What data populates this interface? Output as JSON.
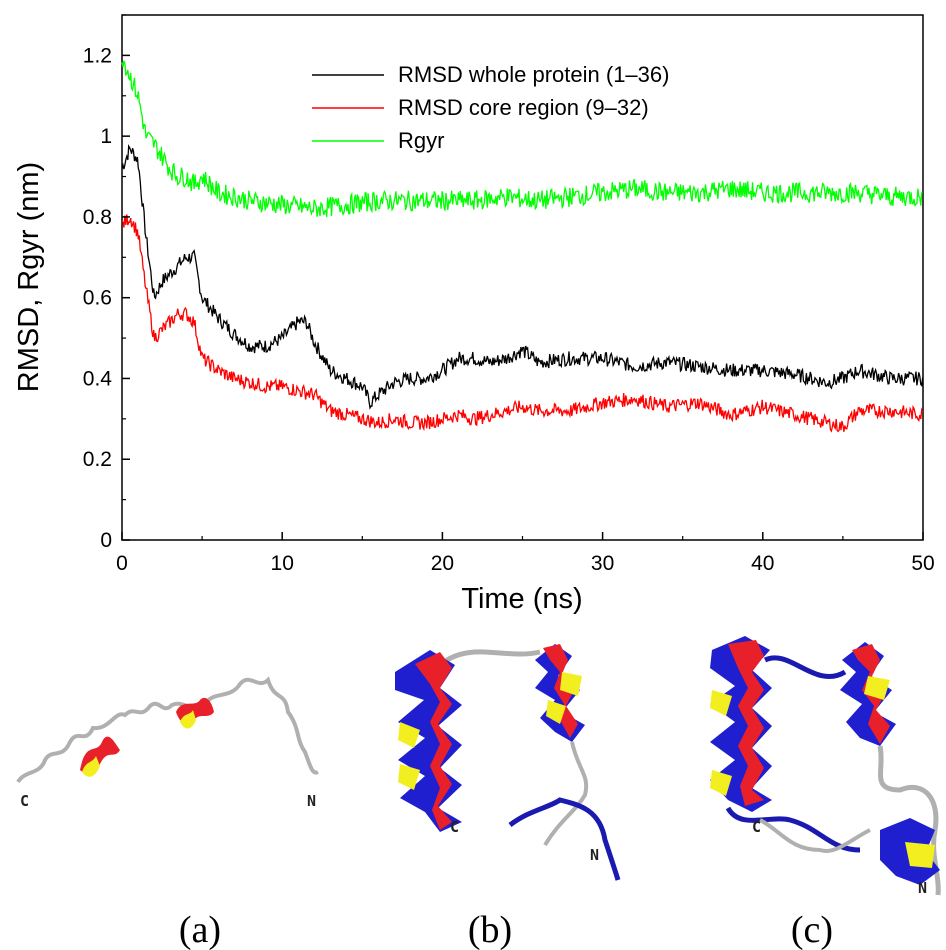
{
  "chart_data": {
    "type": "line",
    "xlabel": "Time (ns)",
    "ylabel": "RMSD, Rgyr (nm)",
    "xlim": [
      0,
      50
    ],
    "ylim": [
      0,
      1.3
    ],
    "xticks": [
      "0",
      "10",
      "20",
      "30",
      "40",
      "50"
    ],
    "yticks": [
      "0",
      "0.2",
      "0.4",
      "0.6",
      "0.8",
      "1",
      "1.2"
    ],
    "grid": false,
    "legend_position": "top-right",
    "series": [
      {
        "name": "RMSD whole protein (1–36)",
        "color": "#000000",
        "x": [
          0,
          0.5,
          1.0,
          1.5,
          2,
          2.5,
          3,
          3.5,
          4,
          4.5,
          5,
          6,
          7,
          8,
          9,
          10,
          11,
          11.5,
          12,
          13,
          14,
          15,
          15.5,
          16,
          17,
          18,
          19,
          20,
          21,
          22,
          23,
          24,
          25,
          26,
          28,
          30,
          32,
          34,
          36,
          38,
          40,
          42,
          44,
          45,
          46,
          47,
          48,
          50
        ],
        "y": [
          0.92,
          0.97,
          0.94,
          0.75,
          0.6,
          0.64,
          0.66,
          0.68,
          0.7,
          0.7,
          0.6,
          0.55,
          0.51,
          0.48,
          0.48,
          0.5,
          0.54,
          0.54,
          0.49,
          0.42,
          0.4,
          0.38,
          0.34,
          0.36,
          0.39,
          0.4,
          0.4,
          0.42,
          0.45,
          0.45,
          0.44,
          0.45,
          0.47,
          0.44,
          0.45,
          0.45,
          0.43,
          0.44,
          0.43,
          0.42,
          0.42,
          0.41,
          0.39,
          0.4,
          0.42,
          0.41,
          0.4,
          0.4
        ]
      },
      {
        "name": "RMSD core region (9–32)",
        "color": "#ff0000",
        "x": [
          0,
          0.5,
          1.0,
          1.5,
          2,
          2.5,
          3,
          3.5,
          4,
          4.5,
          5,
          6,
          7,
          8,
          9,
          10,
          11,
          12,
          13,
          14,
          15,
          16,
          17,
          18,
          19,
          20,
          21,
          22,
          23,
          24,
          25,
          26,
          28,
          30,
          32,
          34,
          36,
          38,
          40,
          42,
          44,
          45,
          46,
          48,
          50
        ],
        "y": [
          0.78,
          0.8,
          0.76,
          0.62,
          0.5,
          0.52,
          0.54,
          0.56,
          0.56,
          0.54,
          0.45,
          0.42,
          0.4,
          0.39,
          0.38,
          0.38,
          0.37,
          0.36,
          0.32,
          0.31,
          0.3,
          0.29,
          0.3,
          0.29,
          0.29,
          0.3,
          0.31,
          0.3,
          0.31,
          0.32,
          0.33,
          0.32,
          0.32,
          0.34,
          0.35,
          0.33,
          0.34,
          0.31,
          0.33,
          0.31,
          0.29,
          0.28,
          0.32,
          0.32,
          0.31
        ]
      },
      {
        "name": "Rgyr",
        "color": "#00ff00",
        "x": [
          0,
          0.5,
          1.0,
          1.5,
          2,
          2.5,
          3,
          3.5,
          4,
          4.5,
          5,
          6,
          7,
          8,
          10,
          12,
          14,
          16,
          18,
          20,
          22,
          24,
          26,
          28,
          30,
          32,
          34,
          36,
          38,
          40,
          42,
          44,
          46,
          48,
          50
        ],
        "y": [
          1.2,
          1.15,
          1.1,
          1.0,
          0.98,
          0.95,
          0.92,
          0.9,
          0.9,
          0.88,
          0.9,
          0.86,
          0.85,
          0.84,
          0.83,
          0.82,
          0.83,
          0.84,
          0.84,
          0.84,
          0.84,
          0.85,
          0.84,
          0.85,
          0.86,
          0.87,
          0.86,
          0.86,
          0.87,
          0.86,
          0.86,
          0.86,
          0.86,
          0.85,
          0.85
        ]
      }
    ]
  },
  "panels": [
    {
      "caption": "(a)",
      "label_left": "C",
      "label_right": "N"
    },
    {
      "caption": "(b)",
      "label_left": "C",
      "label_right": "N"
    },
    {
      "caption": "(c)",
      "label_left": "C",
      "label_right": "N"
    }
  ],
  "colors": {
    "helix_red": "#e8202a",
    "helix_blue": "#1f1fd0",
    "helix_yellow": "#f2ee20",
    "coil_gray": "#b8b8b8",
    "coil_blue": "#1a1ab0"
  }
}
